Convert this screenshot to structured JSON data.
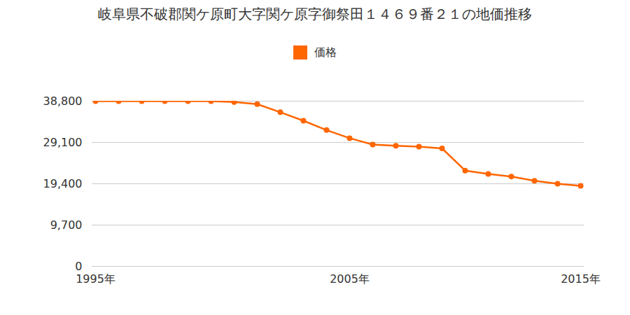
{
  "chart_data": {
    "type": "line",
    "title": "岐阜県不破郡関ケ原町大字関ケ原字御祭田１４６９番２１の地価推移",
    "categories": [
      "1995年",
      null,
      null,
      null,
      null,
      null,
      null,
      null,
      null,
      null,
      null,
      "2005年",
      null,
      null,
      null,
      null,
      null,
      null,
      null,
      null,
      null,
      "2015年"
    ],
    "series": [
      {
        "name": "価格",
        "color": "#ff6600",
        "marker": "circle",
        "values": [
          38800,
          38800,
          38800,
          38800,
          38800,
          38800,
          38600,
          38100,
          36200,
          34200,
          32000,
          30100,
          28600,
          28300,
          28100,
          27700,
          22500,
          21700,
          21100,
          20100,
          19400,
          18900
        ]
      }
    ],
    "ylim": [
      0,
      38800
    ],
    "yticks": [
      0,
      {
        "value": 9700,
        "label": "9,700"
      },
      {
        "value": 19400,
        "label": "19,400"
      },
      {
        "value": 29100,
        "label": "29,100"
      },
      {
        "value": 38800,
        "label": "38,800"
      }
    ],
    "grid": true,
    "legend": "top"
  }
}
